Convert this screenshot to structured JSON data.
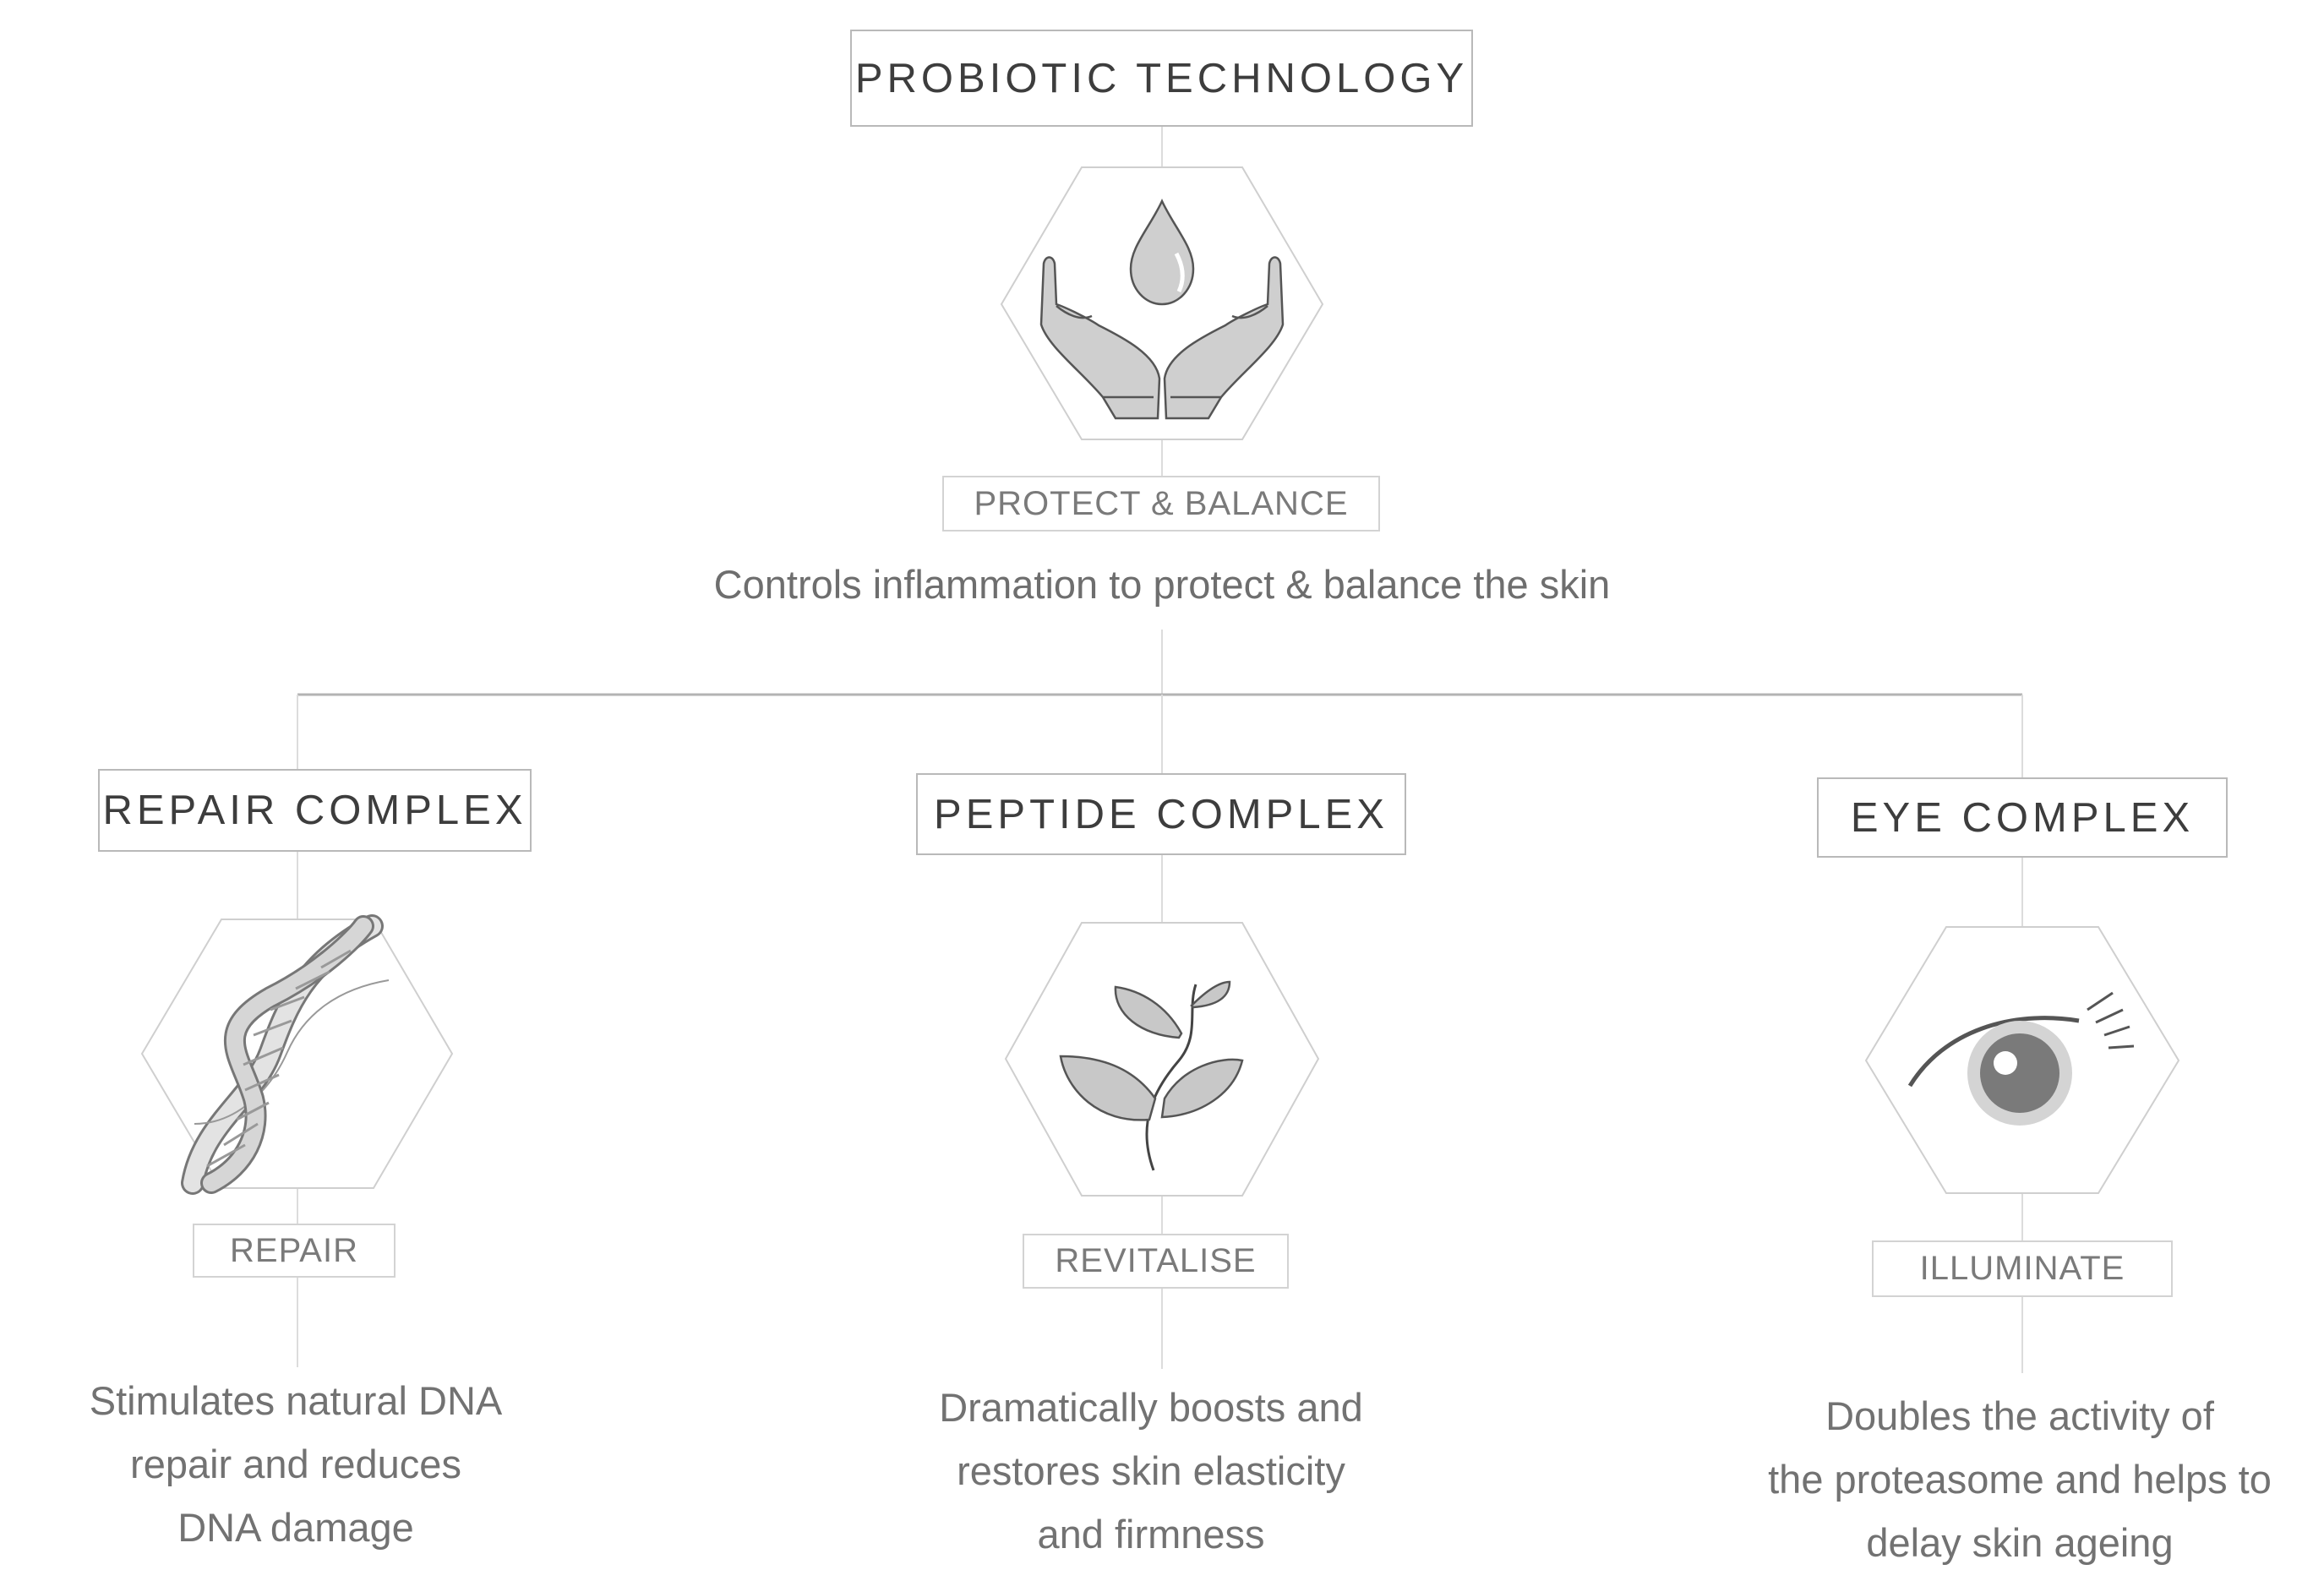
{
  "root": {
    "title": "PROBIOTIC TECHNOLOGY",
    "tag": "PROTECT & BALANCE",
    "description": "Controls inflammation to protect & balance the skin",
    "icon": "hands-droplet-icon"
  },
  "branches": [
    {
      "title": "REPAIR COMPLEX",
      "tag": "REPAIR",
      "icon": "dna-icon",
      "description": [
        "Stimulates natural DNA",
        "repair and reduces",
        "DNA damage"
      ]
    },
    {
      "title": "PEPTIDE COMPLEX",
      "tag": "REVITALISE",
      "icon": "plant-sprout-icon",
      "description": [
        "Dramatically boosts and",
        "restores skin elasticity",
        "and firmness"
      ]
    },
    {
      "title": "EYE COMPLEX",
      "tag": "ILLUMINATE",
      "icon": "eye-icon",
      "description": [
        "Doubles the activity of",
        "the proteasome and helps to",
        "delay skin ageing"
      ]
    }
  ],
  "colors": {
    "line": "#d9d9d9",
    "connector": "#b0b0b0",
    "icon_fill": "#c9c9c9",
    "icon_stroke": "#555555",
    "text": "#6e6e6e"
  }
}
